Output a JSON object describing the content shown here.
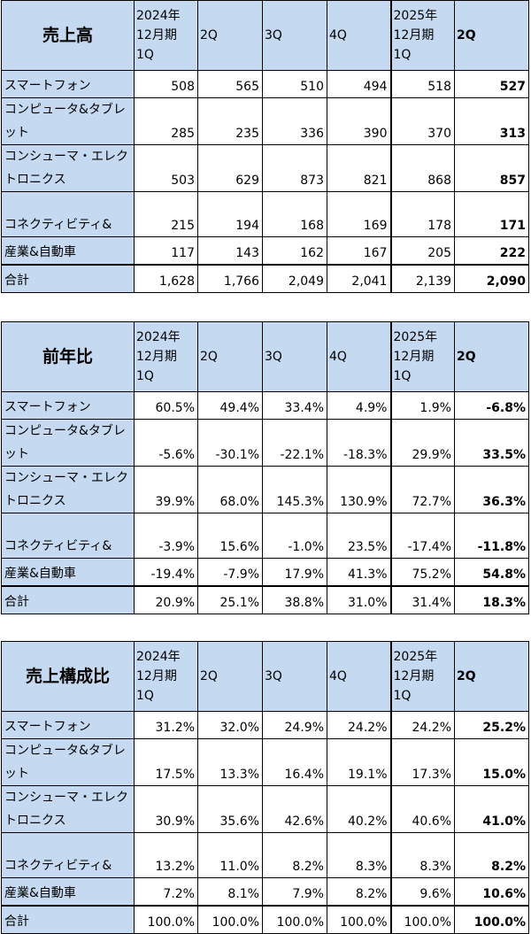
{
  "header": {
    "col1": [
      "2024年",
      "12月期",
      "1Q"
    ],
    "col2": "2Q",
    "col3": "3Q",
    "col4": "4Q",
    "col5": [
      "2025年",
      "12月期",
      "1Q"
    ],
    "col6": "2Q"
  },
  "tables": [
    {
      "title": "売上高",
      "rows": [
        {
          "label": "スマートフォン",
          "values": [
            "508",
            "565",
            "510",
            "494",
            "518",
            "527"
          ]
        },
        {
          "label": "コンピュータ&タブレット",
          "values": [
            "285",
            "235",
            "336",
            "390",
            "370",
            "313"
          ]
        },
        {
          "label": "コンシューマ・エレクトロニクス",
          "values": [
            "503",
            "629",
            "873",
            "821",
            "868",
            "857"
          ]
        },
        {
          "label": "コネクティビティ&",
          "values": [
            "215",
            "194",
            "168",
            "169",
            "178",
            "171"
          ]
        },
        {
          "label": "産業&自動車",
          "values": [
            "117",
            "143",
            "162",
            "167",
            "205",
            "222"
          ]
        },
        {
          "label": "合計",
          "values": [
            "1,628",
            "1,766",
            "2,049",
            "2,041",
            "2,139",
            "2,090"
          ]
        }
      ]
    },
    {
      "title": "前年比",
      "rows": [
        {
          "label": "スマートフォン",
          "values": [
            "60.5%",
            "49.4%",
            "33.4%",
            "4.9%",
            "1.9%",
            "-6.8%"
          ]
        },
        {
          "label": "コンピュータ&タブレット",
          "values": [
            "-5.6%",
            "-30.1%",
            "-22.1%",
            "-18.3%",
            "29.9%",
            "33.5%"
          ]
        },
        {
          "label": "コンシューマ・エレクトロニクス",
          "values": [
            "39.9%",
            "68.0%",
            "145.3%",
            "130.9%",
            "72.7%",
            "36.3%"
          ]
        },
        {
          "label": "コネクティビティ&",
          "values": [
            "-3.9%",
            "15.6%",
            "-1.0%",
            "23.5%",
            "-17.4%",
            "-11.8%"
          ]
        },
        {
          "label": "産業&自動車",
          "values": [
            "-19.4%",
            "-7.9%",
            "17.9%",
            "41.3%",
            "75.2%",
            "54.8%"
          ]
        },
        {
          "label": "合計",
          "values": [
            "20.9%",
            "25.1%",
            "38.8%",
            "31.0%",
            "31.4%",
            "18.3%"
          ]
        }
      ]
    },
    {
      "title": "売上構成比",
      "rows": [
        {
          "label": "スマートフォン",
          "values": [
            "31.2%",
            "32.0%",
            "24.9%",
            "24.2%",
            "24.2%",
            "25.2%"
          ]
        },
        {
          "label": "コンピュータ&タブレット",
          "values": [
            "17.5%",
            "13.3%",
            "16.4%",
            "19.1%",
            "17.3%",
            "15.0%"
          ]
        },
        {
          "label": "コンシューマ・エレクトロニクス",
          "values": [
            "30.9%",
            "35.6%",
            "42.6%",
            "40.2%",
            "40.6%",
            "41.0%"
          ]
        },
        {
          "label": "コネクティビティ&",
          "values": [
            "13.2%",
            "11.0%",
            "8.2%",
            "8.3%",
            "8.3%",
            "8.2%"
          ]
        },
        {
          "label": "産業&自動車",
          "values": [
            "7.2%",
            "8.1%",
            "7.9%",
            "8.2%",
            "9.6%",
            "10.6%"
          ]
        },
        {
          "label": "合計",
          "values": [
            "100.0%",
            "100.0%",
            "100.0%",
            "100.0%",
            "100.0%",
            "100.0%"
          ]
        }
      ]
    }
  ]
}
